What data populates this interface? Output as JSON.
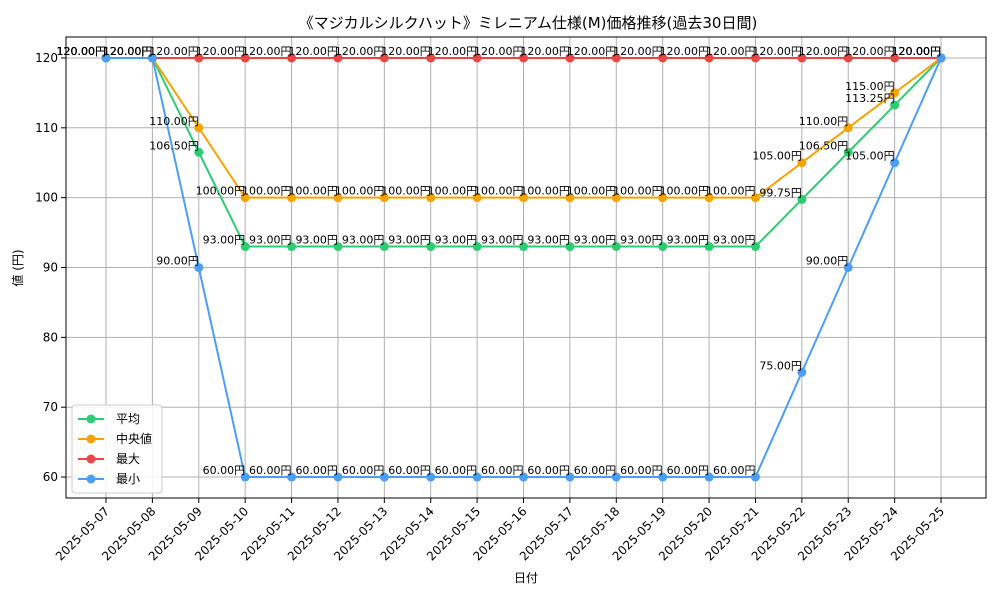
{
  "chart_data": {
    "type": "line",
    "title": "《マジカルシルクハット》ミレニアム仕様(M)価格推移(過去30日間)",
    "xlabel": "日付",
    "ylabel": "値 (円)",
    "ylim": [
      57,
      123
    ],
    "yticks": [
      60,
      70,
      80,
      90,
      100,
      110,
      120
    ],
    "grid": true,
    "legend_position": "lower-left",
    "value_suffix": "円",
    "categories": [
      "2025-05-07",
      "2025-05-08",
      "2025-05-09",
      "2025-05-10",
      "2025-05-11",
      "2025-05-12",
      "2025-05-13",
      "2025-05-14",
      "2025-05-15",
      "2025-05-16",
      "2025-05-17",
      "2025-05-18",
      "2025-05-19",
      "2025-05-20",
      "2025-05-21",
      "2025-05-22",
      "2025-05-23",
      "2025-05-24",
      "2025-05-25"
    ],
    "series": [
      {
        "name": "平均",
        "color": "#2ecc71",
        "values": [
          120,
          120,
          106.5,
          93,
          93,
          93,
          93,
          93,
          93,
          93,
          93,
          93,
          93,
          93,
          93,
          99.75,
          106.5,
          113.25,
          120
        ]
      },
      {
        "name": "中央値",
        "color": "#f5a300",
        "values": [
          120,
          120,
          110,
          100,
          100,
          100,
          100,
          100,
          100,
          100,
          100,
          100,
          100,
          100,
          100,
          105,
          110,
          115,
          120
        ]
      },
      {
        "name": "最大",
        "color": "#ef4444",
        "values": [
          120,
          120,
          120,
          120,
          120,
          120,
          120,
          120,
          120,
          120,
          120,
          120,
          120,
          120,
          120,
          120,
          120,
          120,
          120
        ]
      },
      {
        "name": "最小",
        "color": "#4a9ff5",
        "values": [
          120,
          120,
          90,
          60,
          60,
          60,
          60,
          60,
          60,
          60,
          60,
          60,
          60,
          60,
          60,
          75,
          90,
          105,
          120
        ]
      }
    ]
  }
}
